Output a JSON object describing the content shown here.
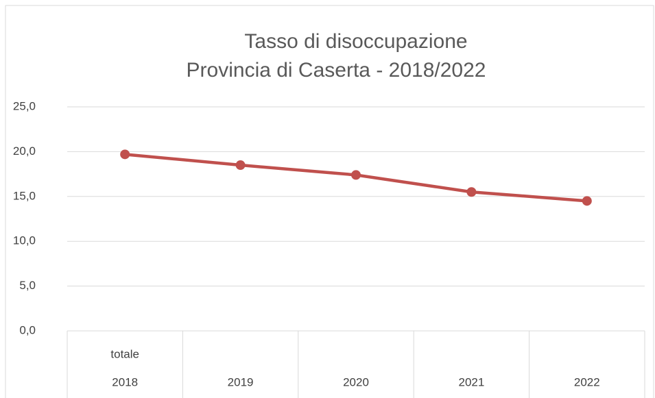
{
  "chart_data": {
    "type": "line",
    "title": "Tasso di disoccupazione",
    "subtitle": "Provincia di Caserta - 2018/2022",
    "categories": [
      "2018",
      "2019",
      "2020",
      "2021",
      "2022"
    ],
    "category_sublabels": [
      "totale",
      null,
      null,
      null,
      null
    ],
    "series": [
      {
        "color": "#c0504d",
        "values": [
          19.7,
          18.5,
          17.4,
          15.5,
          14.5
        ]
      }
    ],
    "ylim": [
      0,
      25
    ],
    "yticks": [
      {
        "value": 0,
        "label": "0,0"
      },
      {
        "value": 5,
        "label": "5,0"
      },
      {
        "value": 10,
        "label": "10,0"
      },
      {
        "value": 15,
        "label": "15,0"
      },
      {
        "value": 20,
        "label": "20,0"
      },
      {
        "value": 25,
        "label": "25,0"
      }
    ],
    "grid": true
  }
}
